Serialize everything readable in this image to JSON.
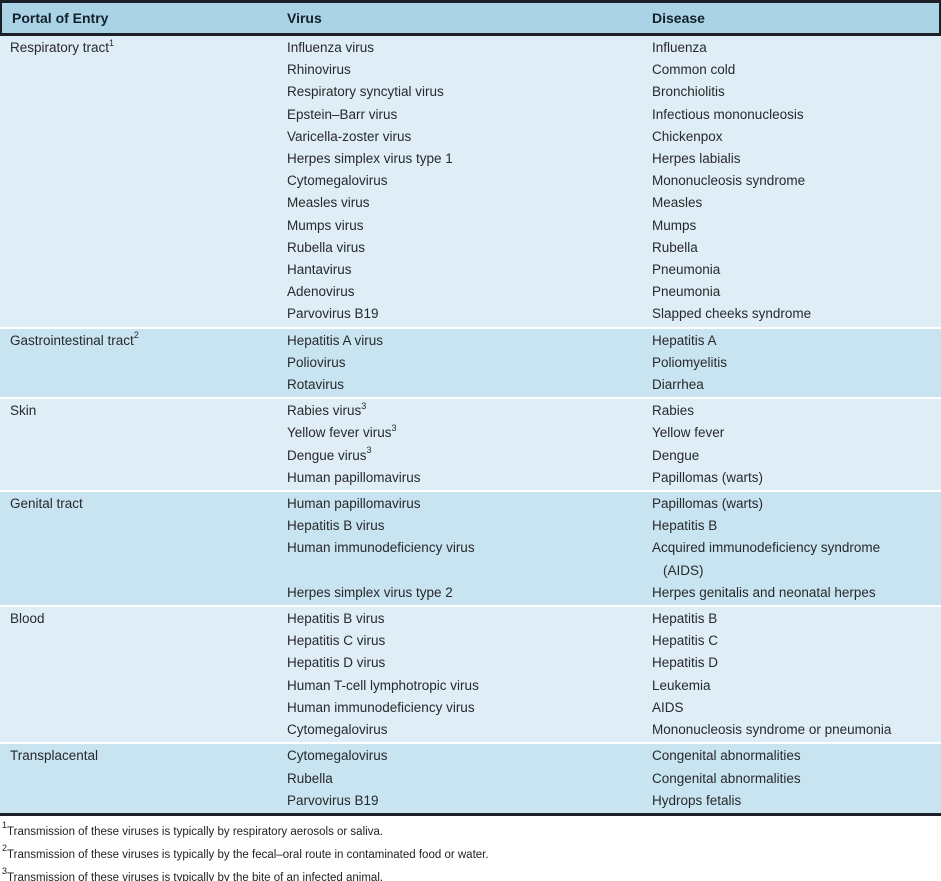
{
  "table": {
    "headers": {
      "portal": "Portal of Entry",
      "virus": "Virus",
      "disease": "Disease"
    },
    "colors": {
      "header_bg": "#aad4e6",
      "band_light": "#dfeef6",
      "band_dark": "#c9e4f1",
      "border_dark": "#1a1f28",
      "header_text": "#13202c",
      "body_text": "#27292c"
    },
    "sections": [
      {
        "id": "respiratory-tract",
        "portal": "Respiratory tract",
        "portal_sup": "1",
        "shade": "light",
        "rows": [
          {
            "virus": "Influenza virus",
            "disease": "Influenza"
          },
          {
            "virus": "Rhinovirus",
            "disease": "Common cold"
          },
          {
            "virus": "Respiratory syncytial virus",
            "disease": "Bronchiolitis"
          },
          {
            "virus": "Epstein–Barr virus",
            "disease": "Infectious mononucleosis"
          },
          {
            "virus": "Varicella-zoster virus",
            "disease": "Chickenpox"
          },
          {
            "virus": "Herpes simplex virus type 1",
            "disease": "Herpes labialis"
          },
          {
            "virus": "Cytomegalovirus",
            "disease": "Mononucleosis syndrome"
          },
          {
            "virus": "Measles virus",
            "disease": "Measles"
          },
          {
            "virus": "Mumps virus",
            "disease": "Mumps"
          },
          {
            "virus": "Rubella virus",
            "disease": "Rubella"
          },
          {
            "virus": "Hantavirus",
            "disease": "Pneumonia"
          },
          {
            "virus": "Adenovirus",
            "disease": "Pneumonia"
          },
          {
            "virus": "Parvovirus B19",
            "disease": "Slapped cheeks syndrome"
          }
        ]
      },
      {
        "id": "gastrointestinal-tract",
        "portal": "Gastrointestinal tract",
        "portal_sup": "2",
        "shade": "dark",
        "rows": [
          {
            "virus": "Hepatitis A virus",
            "disease": "Hepatitis A"
          },
          {
            "virus": "Poliovirus",
            "disease": "Poliomyelitis"
          },
          {
            "virus": "Rotavirus",
            "disease": "Diarrhea"
          }
        ]
      },
      {
        "id": "skin",
        "portal": "Skin",
        "portal_sup": "",
        "shade": "light",
        "rows": [
          {
            "virus": "Rabies virus",
            "virus_sup": "3",
            "disease": "Rabies"
          },
          {
            "virus": "Yellow fever virus",
            "virus_sup": "3",
            "disease": "Yellow fever"
          },
          {
            "virus": "Dengue virus",
            "virus_sup": "3",
            "disease": "Dengue"
          },
          {
            "virus": "Human papillomavirus",
            "disease": "Papillomas (warts)"
          }
        ]
      },
      {
        "id": "genital-tract",
        "portal": "Genital tract",
        "portal_sup": "",
        "shade": "dark",
        "rows": [
          {
            "virus": "Human papillomavirus",
            "disease": "Papillomas (warts)"
          },
          {
            "virus": "Hepatitis B virus",
            "disease": "Hepatitis B"
          },
          {
            "virus": "Human immunodeficiency virus",
            "disease": "Acquired immunodeficiency syndrome",
            "disease_line2": "(AIDS)"
          },
          {
            "virus": "Herpes simplex virus type 2",
            "disease": "Herpes genitalis and neonatal herpes"
          }
        ]
      },
      {
        "id": "blood",
        "portal": "Blood",
        "portal_sup": "",
        "shade": "light",
        "rows": [
          {
            "virus": "Hepatitis B virus",
            "disease": "Hepatitis B"
          },
          {
            "virus": "Hepatitis C virus",
            "disease": "Hepatitis C"
          },
          {
            "virus": "Hepatitis D virus",
            "disease": "Hepatitis D"
          },
          {
            "virus": "Human T-cell lymphotropic virus",
            "disease": "Leukemia"
          },
          {
            "virus": "Human immunodeficiency virus",
            "disease": "AIDS"
          },
          {
            "virus": "Cytomegalovirus",
            "disease": "Mononucleosis syndrome or pneumonia"
          }
        ]
      },
      {
        "id": "transplacental",
        "portal": "Transplacental",
        "portal_sup": "",
        "shade": "dark",
        "rows": [
          {
            "virus": "Cytomegalovirus",
            "disease": "Congenital abnormalities"
          },
          {
            "virus": "Rubella",
            "disease": "Congenital abnormalities"
          },
          {
            "virus": "Parvovirus B19",
            "disease": "Hydrops fetalis"
          }
        ]
      }
    ]
  },
  "footnotes": [
    {
      "sup": "1",
      "text": "Transmission of these viruses is typically by respiratory aerosols or saliva."
    },
    {
      "sup": "2",
      "text": "Transmission of these viruses is typically by the fecal–oral route in contaminated food or water."
    },
    {
      "sup": "3",
      "text": "Transmission of these viruses is typically by the bite of an infected animal."
    }
  ]
}
